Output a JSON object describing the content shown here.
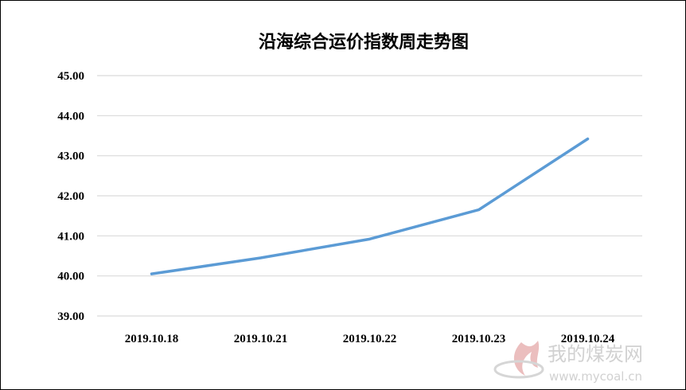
{
  "chart_data": {
    "type": "line",
    "title": "沿海综合运价指数周走势图",
    "categories": [
      "2019.10.18",
      "2019.10.21",
      "2019.10.22",
      "2019.10.23",
      "2019.10.24"
    ],
    "series": [
      {
        "values": [
          40.05,
          40.45,
          40.92,
          41.65,
          43.42
        ]
      }
    ],
    "ylim": [
      39.0,
      45.0
    ],
    "yticks": [
      "39.00",
      "40.00",
      "41.00",
      "42.00",
      "43.00",
      "44.00",
      "45.00"
    ],
    "grid": true,
    "line_color": "#5b9bd5",
    "grid_color": "#d9d9d9"
  },
  "watermark": {
    "brand": "我的煤炭网",
    "url": "www.mycoal.cn"
  }
}
